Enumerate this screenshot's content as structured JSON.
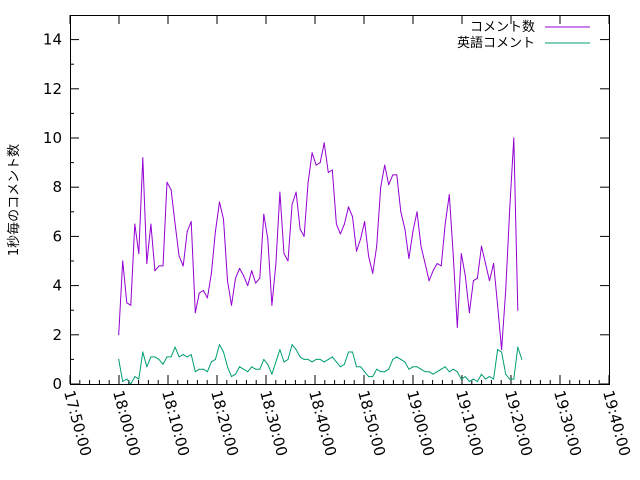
{
  "chart_data": {
    "type": "line",
    "title": "",
    "xlabel": "",
    "ylabel": "1秒毎のコメント数",
    "xlim": [
      "17:50:00",
      "19:40:00"
    ],
    "ylim": [
      0,
      15
    ],
    "x_ticks": [
      "17:50:00",
      "18:00:00",
      "18:10:00",
      "18:20:00",
      "18:30:00",
      "18:40:00",
      "18:50:00",
      "19:00:00",
      "19:10:00",
      "19:20:00",
      "19:30:00",
      "19:40:00"
    ],
    "y_ticks": [
      "0",
      "2",
      "4",
      "6",
      "8",
      "10",
      "12",
      "14"
    ],
    "grid": false,
    "legend_position": "top-right",
    "series": [
      {
        "name": "コメント数",
        "color": "#9400d3",
        "points": [
          [
            "17:59:56",
            2.0
          ],
          [
            "18:00:45",
            5.0
          ],
          [
            "18:01:35",
            3.3
          ],
          [
            "18:02:24",
            3.2
          ],
          [
            "18:03:13",
            6.5
          ],
          [
            "18:04:03",
            5.3
          ],
          [
            "18:04:52",
            9.2
          ],
          [
            "18:05:41",
            4.9
          ],
          [
            "18:06:31",
            6.5
          ],
          [
            "18:07:20",
            4.6
          ],
          [
            "18:08:10",
            4.8
          ],
          [
            "18:08:59",
            4.8
          ],
          [
            "18:09:48",
            8.2
          ],
          [
            "18:10:38",
            7.9
          ],
          [
            "18:11:27",
            6.5
          ],
          [
            "18:12:16",
            5.2
          ],
          [
            "18:13:06",
            4.8
          ],
          [
            "18:13:55",
            6.2
          ],
          [
            "18:14:44",
            6.6
          ],
          [
            "18:15:34",
            2.9
          ],
          [
            "18:16:23",
            3.7
          ],
          [
            "18:17:13",
            3.8
          ],
          [
            "18:18:02",
            3.5
          ],
          [
            "18:18:51",
            4.5
          ],
          [
            "18:19:41",
            6.2
          ],
          [
            "18:20:30",
            7.4
          ],
          [
            "18:21:19",
            6.7
          ],
          [
            "18:22:09",
            4.2
          ],
          [
            "18:22:58",
            3.2
          ],
          [
            "18:23:47",
            4.3
          ],
          [
            "18:24:37",
            4.7
          ],
          [
            "18:25:26",
            4.4
          ],
          [
            "18:26:16",
            4.0
          ],
          [
            "18:27:05",
            4.6
          ],
          [
            "18:27:54",
            4.1
          ],
          [
            "18:28:44",
            4.3
          ],
          [
            "18:29:33",
            6.9
          ],
          [
            "18:30:22",
            5.9
          ],
          [
            "18:31:12",
            3.2
          ],
          [
            "18:32:01",
            4.9
          ],
          [
            "18:32:50",
            7.8
          ],
          [
            "18:33:40",
            5.3
          ],
          [
            "18:34:29",
            5.0
          ],
          [
            "18:35:19",
            7.3
          ],
          [
            "18:36:08",
            7.8
          ],
          [
            "18:36:57",
            6.3
          ],
          [
            "18:37:47",
            6.0
          ],
          [
            "18:38:36",
            8.2
          ],
          [
            "18:39:25",
            9.4
          ],
          [
            "18:40:15",
            8.9
          ],
          [
            "18:41:04",
            9.0
          ],
          [
            "18:41:53",
            9.8
          ],
          [
            "18:42:43",
            8.6
          ],
          [
            "18:43:32",
            8.7
          ],
          [
            "18:44:22",
            6.5
          ],
          [
            "18:45:11",
            6.1
          ],
          [
            "18:46:00",
            6.5
          ],
          [
            "18:46:50",
            7.2
          ],
          [
            "18:47:39",
            6.8
          ],
          [
            "18:48:28",
            5.4
          ],
          [
            "18:49:18",
            5.9
          ],
          [
            "18:50:07",
            6.6
          ],
          [
            "18:50:56",
            5.2
          ],
          [
            "18:51:46",
            4.5
          ],
          [
            "18:52:35",
            5.6
          ],
          [
            "18:53:25",
            8.0
          ],
          [
            "18:54:14",
            8.9
          ],
          [
            "18:55:03",
            8.1
          ],
          [
            "18:55:53",
            8.5
          ],
          [
            "18:56:42",
            8.5
          ],
          [
            "18:57:31",
            7.0
          ],
          [
            "18:58:21",
            6.3
          ],
          [
            "18:59:10",
            5.1
          ],
          [
            "18:59:59",
            6.2
          ],
          [
            "19:00:49",
            7.0
          ],
          [
            "19:01:38",
            5.6
          ],
          [
            "19:02:28",
            4.9
          ],
          [
            "19:03:17",
            4.2
          ],
          [
            "19:04:06",
            4.6
          ],
          [
            "19:04:56",
            4.9
          ],
          [
            "19:05:45",
            4.8
          ],
          [
            "19:06:34",
            6.5
          ],
          [
            "19:07:24",
            7.7
          ],
          [
            "19:08:13",
            5.2
          ],
          [
            "19:09:02",
            2.3
          ],
          [
            "19:09:52",
            5.3
          ],
          [
            "19:10:41",
            4.4
          ],
          [
            "19:11:31",
            2.9
          ],
          [
            "19:12:20",
            4.2
          ],
          [
            "19:13:09",
            4.3
          ],
          [
            "19:13:59",
            5.6
          ],
          [
            "19:14:48",
            4.9
          ],
          [
            "19:15:37",
            4.2
          ],
          [
            "19:16:27",
            4.9
          ],
          [
            "19:17:16",
            3.2
          ],
          [
            "19:18:05",
            1.4
          ],
          [
            "19:18:55",
            3.8
          ],
          [
            "19:19:44",
            7.1
          ],
          [
            "19:20:34",
            10.0
          ],
          [
            "19:21:23",
            3.0
          ]
        ]
      },
      {
        "name": "英語コメント",
        "color": "#009e73",
        "points": [
          [
            "17:59:56",
            1.0
          ],
          [
            "18:00:45",
            0.1
          ],
          [
            "18:01:35",
            0.2
          ],
          [
            "18:02:24",
            0.0
          ],
          [
            "18:03:13",
            0.3
          ],
          [
            "18:04:03",
            0.2
          ],
          [
            "18:04:52",
            1.3
          ],
          [
            "18:05:41",
            0.7
          ],
          [
            "18:06:31",
            1.1
          ],
          [
            "18:07:20",
            1.1
          ],
          [
            "18:08:10",
            1.0
          ],
          [
            "18:08:59",
            0.8
          ],
          [
            "18:09:48",
            1.1
          ],
          [
            "18:10:38",
            1.1
          ],
          [
            "18:11:27",
            1.5
          ],
          [
            "18:12:16",
            1.1
          ],
          [
            "18:13:06",
            1.2
          ],
          [
            "18:13:55",
            1.1
          ],
          [
            "18:14:44",
            1.2
          ],
          [
            "18:15:34",
            0.5
          ],
          [
            "18:16:23",
            0.6
          ],
          [
            "18:17:13",
            0.6
          ],
          [
            "18:18:02",
            0.5
          ],
          [
            "18:18:51",
            0.9
          ],
          [
            "18:19:41",
            1.0
          ],
          [
            "18:20:30",
            1.6
          ],
          [
            "18:21:19",
            1.3
          ],
          [
            "18:22:09",
            0.7
          ],
          [
            "18:22:58",
            0.3
          ],
          [
            "18:23:47",
            0.4
          ],
          [
            "18:24:37",
            0.7
          ],
          [
            "18:25:26",
            0.6
          ],
          [
            "18:26:16",
            0.5
          ],
          [
            "18:27:05",
            0.7
          ],
          [
            "18:27:54",
            0.6
          ],
          [
            "18:28:44",
            0.6
          ],
          [
            "18:29:33",
            1.0
          ],
          [
            "18:30:22",
            0.8
          ],
          [
            "18:31:12",
            0.4
          ],
          [
            "18:32:01",
            0.9
          ],
          [
            "18:32:50",
            1.4
          ],
          [
            "18:33:40",
            0.9
          ],
          [
            "18:34:29",
            1.0
          ],
          [
            "18:35:19",
            1.6
          ],
          [
            "18:36:08",
            1.4
          ],
          [
            "18:36:57",
            1.1
          ],
          [
            "18:37:47",
            1.0
          ],
          [
            "18:38:36",
            1.0
          ],
          [
            "18:39:25",
            0.9
          ],
          [
            "18:40:15",
            1.0
          ],
          [
            "18:41:04",
            1.0
          ],
          [
            "18:41:53",
            0.9
          ],
          [
            "18:42:43",
            1.0
          ],
          [
            "18:43:32",
            1.1
          ],
          [
            "18:44:22",
            0.9
          ],
          [
            "18:45:11",
            0.7
          ],
          [
            "18:46:00",
            0.8
          ],
          [
            "18:46:50",
            1.3
          ],
          [
            "18:47:39",
            1.3
          ],
          [
            "18:48:28",
            0.7
          ],
          [
            "18:49:18",
            0.7
          ],
          [
            "18:50:07",
            0.5
          ],
          [
            "18:50:56",
            0.3
          ],
          [
            "18:51:46",
            0.3
          ],
          [
            "18:52:35",
            0.6
          ],
          [
            "18:53:25",
            0.5
          ],
          [
            "18:54:14",
            0.5
          ],
          [
            "18:55:03",
            0.6
          ],
          [
            "18:55:53",
            1.0
          ],
          [
            "18:56:42",
            1.1
          ],
          [
            "18:57:31",
            1.0
          ],
          [
            "18:58:21",
            0.9
          ],
          [
            "18:59:10",
            0.6
          ],
          [
            "18:59:59",
            0.7
          ],
          [
            "19:00:49",
            0.7
          ],
          [
            "19:01:38",
            0.6
          ],
          [
            "19:02:28",
            0.5
          ],
          [
            "19:03:17",
            0.5
          ],
          [
            "19:04:06",
            0.4
          ],
          [
            "19:04:56",
            0.5
          ],
          [
            "19:05:45",
            0.6
          ],
          [
            "19:06:34",
            0.7
          ],
          [
            "19:07:24",
            0.5
          ],
          [
            "19:08:13",
            0.6
          ],
          [
            "19:09:02",
            0.5
          ],
          [
            "19:09:52",
            0.2
          ],
          [
            "19:10:41",
            0.3
          ],
          [
            "19:11:31",
            0.1
          ],
          [
            "19:12:20",
            0.2
          ],
          [
            "19:13:09",
            0.1
          ],
          [
            "19:13:59",
            0.4
          ],
          [
            "19:14:48",
            0.2
          ],
          [
            "19:15:37",
            0.3
          ],
          [
            "19:16:27",
            0.2
          ],
          [
            "19:17:16",
            1.4
          ],
          [
            "19:18:05",
            1.3
          ],
          [
            "19:18:55",
            0.4
          ],
          [
            "19:19:44",
            0.2
          ],
          [
            "19:20:34",
            0.2
          ],
          [
            "19:21:23",
            1.5
          ],
          [
            "19:22:12",
            1.0
          ]
        ]
      }
    ]
  }
}
